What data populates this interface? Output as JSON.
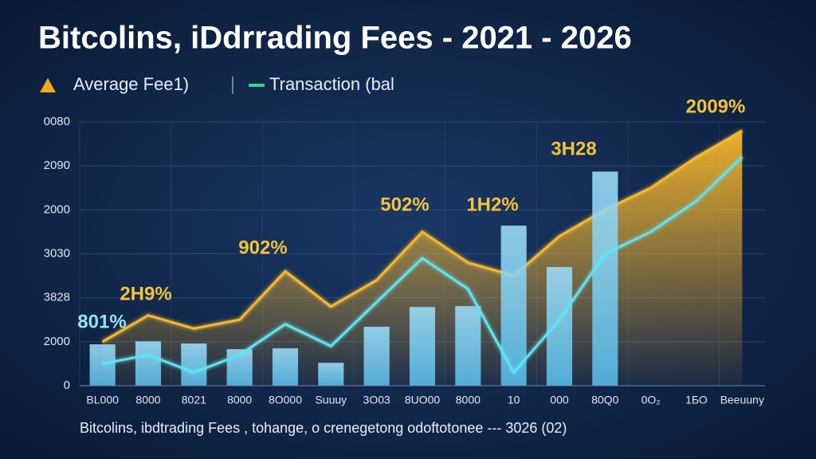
{
  "chart_data": {
    "type": "combo",
    "title": "Bitcolins, iDdrrading Fees - 2021 - 2026",
    "subtitle": "Bitcolins, ibdtrading Fees , tohange, o crenegetong odoftotonee --- 3026 (02)",
    "categories": [
      "BL000",
      "8000",
      "8021",
      "8000",
      "8O000",
      "Suuuy",
      "3O03",
      "8UO00",
      "8000",
      "10",
      "000",
      "80Q0",
      "0O₂",
      "1ƂO",
      "Beeuuny"
    ],
    "bars": {
      "color": "#5cc2ef",
      "values": [
        0.94,
        1.01,
        0.96,
        0.83,
        0.85,
        0.52,
        1.34,
        1.79,
        1.81,
        3.64,
        2.7,
        4.87,
        null,
        null,
        null
      ]
    },
    "series": [
      {
        "name": "Average Fee1)",
        "color": "#f5b82e",
        "values": [
          1.0,
          1.6,
          1.3,
          1.5,
          2.6,
          1.8,
          2.4,
          3.5,
          2.8,
          2.5,
          3.4,
          4.0,
          4.5,
          5.2,
          5.8
        ]
      },
      {
        "name": "Transaction (bal",
        "color": "#5fe3f2",
        "values": [
          0.5,
          0.7,
          0.3,
          0.7,
          1.4,
          0.9,
          1.9,
          2.9,
          2.2,
          0.3,
          1.5,
          3.0,
          3.5,
          4.2,
          5.2
        ]
      }
    ],
    "annotations": [
      "801%",
      "2H9%",
      "902%",
      "502%",
      "1H2%",
      "3H28",
      "2009%"
    ],
    "ylim": [
      0,
      6
    ],
    "yticks": [
      0,
      {
        "value": 1,
        "label": "2000"
      },
      {
        "value": 2,
        "label": "3828"
      },
      {
        "value": 3,
        "label": "3030"
      },
      {
        "value": 4,
        "label": "2000"
      },
      {
        "value": 5,
        "label": "2090"
      },
      {
        "value": 6,
        "label": "0080"
      }
    ],
    "grid": true
  }
}
